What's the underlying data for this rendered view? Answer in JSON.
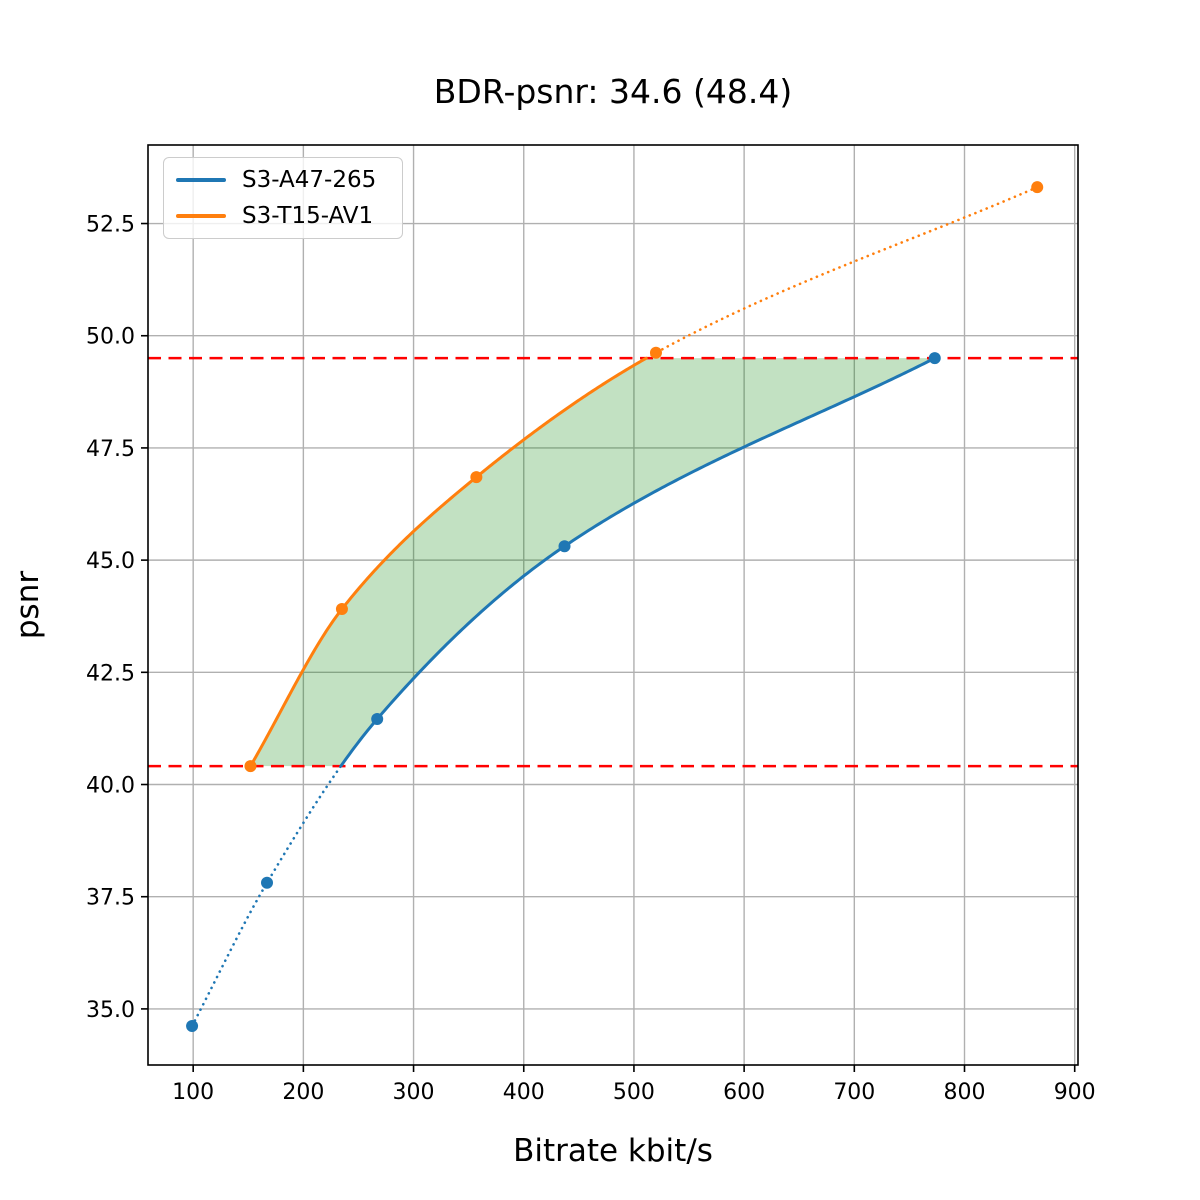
{
  "title": "BDR-psnr: 34.6 (48.4)",
  "chart_data": {
    "type": "line",
    "title": "BDR-psnr: 34.6 (48.4)",
    "xlabel": "Bitrate kbit/s",
    "ylabel": "psnr",
    "xlim": [
      59,
      903
    ],
    "ylim": [
      33.75,
      54.25
    ],
    "x_ticks": [
      100,
      200,
      300,
      400,
      500,
      600,
      700,
      800,
      900
    ],
    "x_tick_labels": [
      "100",
      "200",
      "300",
      "400",
      "500",
      "600",
      "700",
      "800",
      "900"
    ],
    "y_ticks": [
      35.0,
      37.5,
      40.0,
      42.5,
      45.0,
      47.5,
      50.0,
      52.5
    ],
    "y_tick_labels": [
      "35.0",
      "37.5",
      "40.0",
      "42.5",
      "45.0",
      "47.5",
      "50.0",
      "52.5"
    ],
    "grid": true,
    "grid_color": "#b0b0b0",
    "background_color": "#ffffff",
    "legend_position": "upper left",
    "series": [
      {
        "name": "S3-A47-265",
        "color": "#1f77b4",
        "x": [
          99,
          167,
          267,
          437,
          773
        ],
        "y": [
          34.62,
          37.81,
          41.46,
          45.31,
          49.5
        ]
      },
      {
        "name": "S3-T15-AV1",
        "color": "#ff7f0e",
        "x": [
          152,
          235,
          357,
          520,
          866
        ],
        "y": [
          40.41,
          43.91,
          46.85,
          49.62,
          53.31
        ]
      }
    ],
    "overlap_lines": {
      "style": "dashed",
      "color": "#ff0000",
      "values": [
        40.41,
        49.5
      ]
    },
    "fill_between": {
      "color": "#008000",
      "opacity": 0.24,
      "psnr_range": [
        40.41,
        49.5
      ]
    }
  }
}
